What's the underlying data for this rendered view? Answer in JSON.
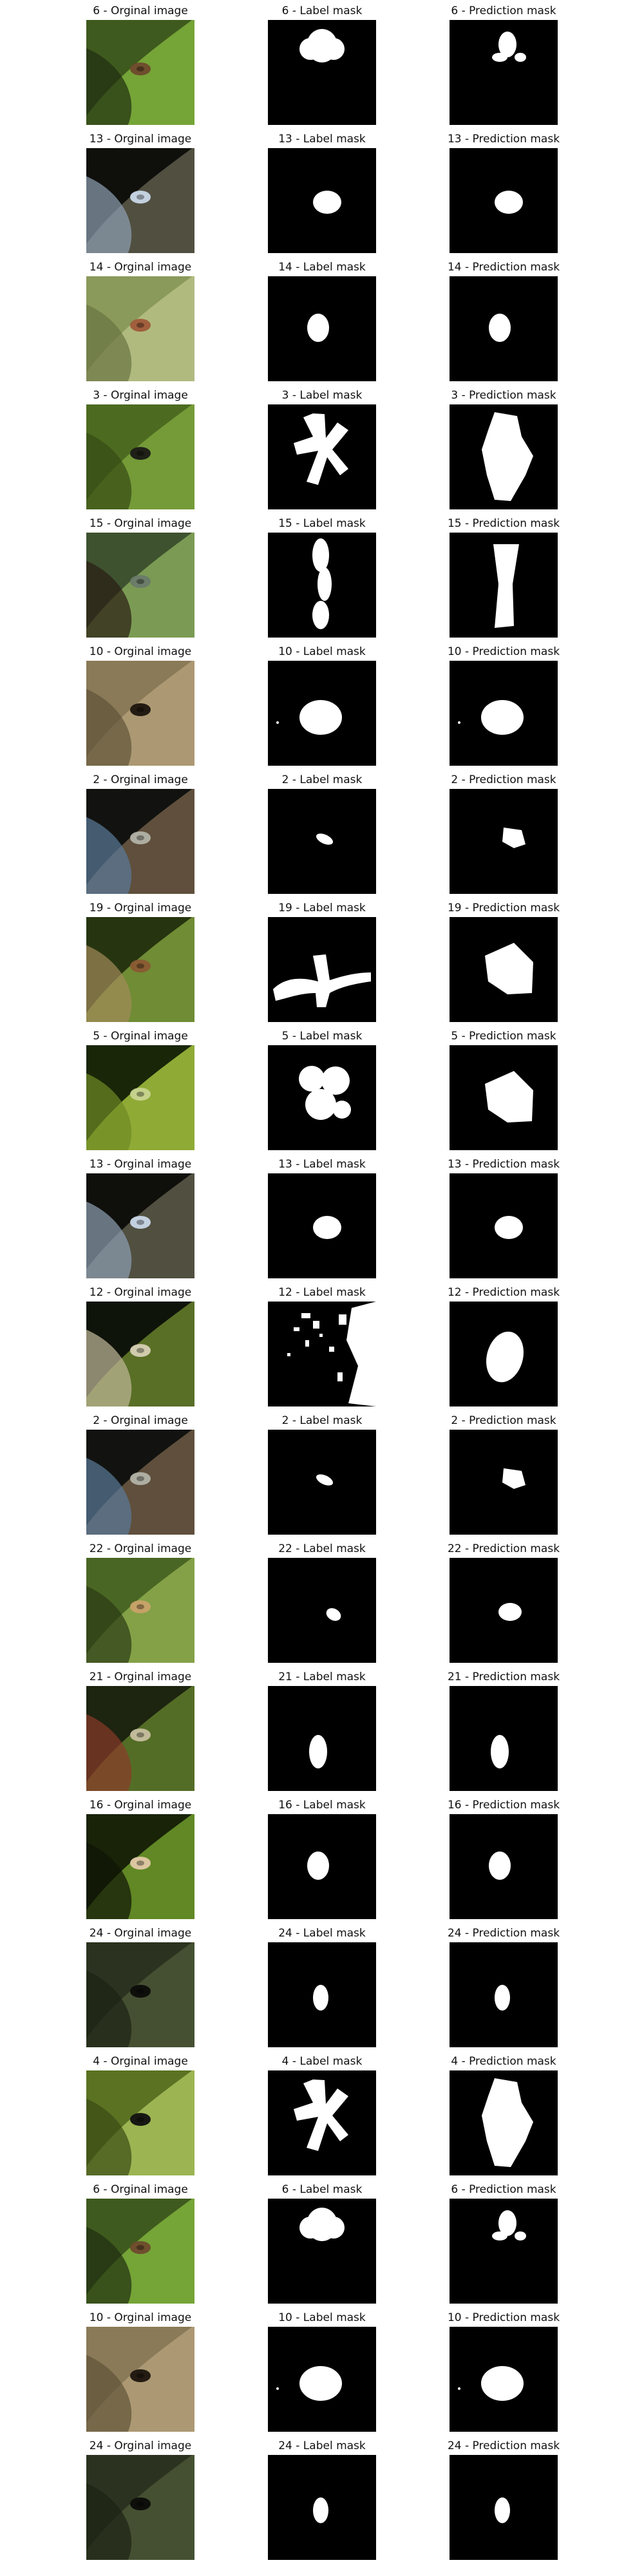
{
  "rows": [
    {
      "id": 6,
      "original": "6 - Orginal image",
      "label": "6 - Label mask",
      "prediction": "6 - Prediction mask",
      "scene": "leaf-green",
      "label_mask": "blob-top",
      "pred_mask": "blob-small-top"
    },
    {
      "id": 13,
      "original": "13 - Orginal image",
      "label": "13 - Label mask",
      "prediction": "13 - Prediction mask",
      "scene": "bark-dark",
      "label_mask": "blob-mid",
      "pred_mask": "blob-mid"
    },
    {
      "id": 14,
      "original": "14 - Orginal image",
      "label": "14 - Label mask",
      "prediction": "14 - Prediction mask",
      "scene": "leaf-light",
      "label_mask": "blob-small",
      "pred_mask": "blob-small"
    },
    {
      "id": 3,
      "original": "3 - Orginal image",
      "label": "3 - Label mask",
      "prediction": "3 - Prediction mask",
      "scene": "leaf-textured",
      "label_mask": "branchy",
      "pred_mask": "large-shape"
    },
    {
      "id": 15,
      "original": "15 - Orginal image",
      "label": "15 - Label mask",
      "prediction": "15 - Prediction mask",
      "scene": "leaf-mixed",
      "label_mask": "vertical",
      "pred_mask": "vertical-wide"
    },
    {
      "id": 10,
      "original": "10 - Orginal image",
      "label": "10 - Label mask",
      "prediction": "10 - Prediction mask",
      "scene": "sand",
      "label_mask": "round-large",
      "pred_mask": "round-large"
    },
    {
      "id": 2,
      "original": "2 - Orginal image",
      "label": "2 - Label mask",
      "prediction": "2 - Prediction mask",
      "scene": "branch-dark",
      "label_mask": "tiny",
      "pred_mask": "tiny-right"
    },
    {
      "id": 19,
      "original": "19 - Orginal image",
      "label": "19 - Label mask",
      "prediction": "19 - Prediction mask",
      "scene": "stem-green",
      "label_mask": "wiggle",
      "pred_mask": "blob-large"
    },
    {
      "id": 5,
      "original": "5 - Orginal image",
      "label": "5 - Label mask",
      "prediction": "5 - Prediction mask",
      "scene": "leaf-bright",
      "label_mask": "cluster",
      "pred_mask": "blob-large"
    },
    {
      "id": 13,
      "original": "13 - Orginal image",
      "label": "13 - Label mask",
      "prediction": "13 - Prediction mask",
      "scene": "bark-dark",
      "label_mask": "blob-mid",
      "pred_mask": "blob-mid"
    },
    {
      "id": 12,
      "original": "12 - Orginal image",
      "label": "12 - Label mask",
      "prediction": "12 - Prediction mask",
      "scene": "foliage-dark",
      "label_mask": "noisy",
      "pred_mask": "blob-tall"
    },
    {
      "id": 2,
      "original": "2 - Orginal image",
      "label": "2 - Label mask",
      "prediction": "2 - Prediction mask",
      "scene": "branch-dark",
      "label_mask": "tiny",
      "pred_mask": "tiny-right"
    },
    {
      "id": 22,
      "original": "22 - Orginal image",
      "label": "22 - Label mask",
      "prediction": "22 - Prediction mask",
      "scene": "leaf-diagonal",
      "label_mask": "tiny-offset",
      "pred_mask": "blob-small-right"
    },
    {
      "id": 21,
      "original": "21 - Orginal image",
      "label": "21 - Label mask",
      "prediction": "21 - Prediction mask",
      "scene": "fern",
      "label_mask": "oval-tall",
      "pred_mask": "oval-tall"
    },
    {
      "id": 16,
      "original": "16 - Orginal image",
      "label": "16 - Label mask",
      "prediction": "16 - Prediction mask",
      "scene": "leaf-dark",
      "label_mask": "blob-small",
      "pred_mask": "blob-small"
    },
    {
      "id": 24,
      "original": "24 - Orginal image",
      "label": "24 - Label mask",
      "prediction": "24 - Prediction mask",
      "scene": "ground-dark",
      "label_mask": "oval-small",
      "pred_mask": "oval-small"
    },
    {
      "id": 4,
      "original": "4 - Orginal image",
      "label": "4 - Label mask",
      "prediction": "4 - Prediction mask",
      "scene": "leaf-yellow",
      "label_mask": "branchy",
      "pred_mask": "large-shape"
    },
    {
      "id": 6,
      "original": "6 - Orginal image",
      "label": "6 - Label mask",
      "prediction": "6 - Prediction mask",
      "scene": "leaf-green",
      "label_mask": "blob-top",
      "pred_mask": "blob-small-top"
    },
    {
      "id": 10,
      "original": "10 - Orginal image",
      "label": "10 - Label mask",
      "prediction": "10 - Prediction mask",
      "scene": "sand",
      "label_mask": "round-large",
      "pred_mask": "round-large"
    },
    {
      "id": 24,
      "original": "24 - Orginal image",
      "label": "24 - Label mask",
      "prediction": "24 - Prediction mask",
      "scene": "ground-dark",
      "label_mask": "oval-small",
      "pred_mask": "oval-small"
    }
  ]
}
